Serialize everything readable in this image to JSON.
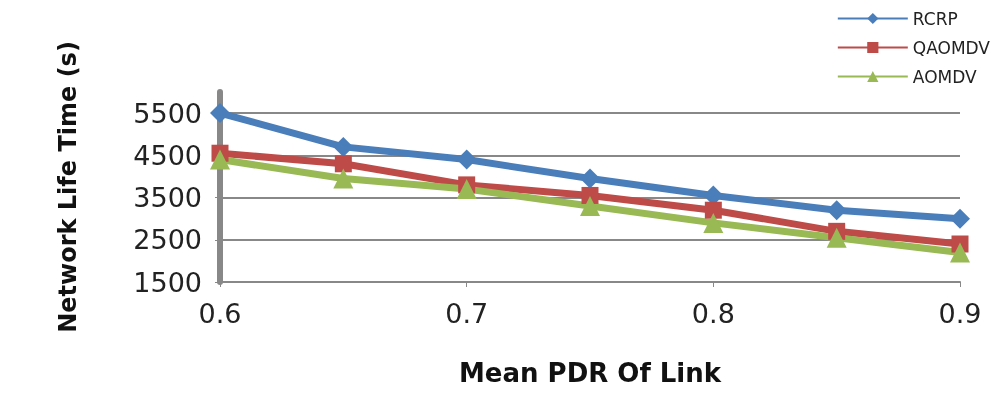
{
  "chart_data": {
    "type": "line",
    "xlabel": "Mean PDR Of Link",
    "ylabel": "Network Life Time (s)",
    "x": [
      0.6,
      0.65,
      0.7,
      0.75,
      0.8,
      0.85,
      0.9
    ],
    "xlim": [
      0.6,
      0.9
    ],
    "xticks": [
      {
        "value": 0.6,
        "label": "0.6"
      },
      {
        "value": 0.7,
        "label": "0.7"
      },
      {
        "value": 0.8,
        "label": "0.8"
      },
      {
        "value": 0.9,
        "label": "0.9"
      }
    ],
    "ylim": [
      1500,
      6000
    ],
    "yticks": [
      1500,
      2500,
      3500,
      4500,
      5500
    ],
    "grid": "y",
    "legend": "top right",
    "series": [
      {
        "name": "RCRP",
        "color": "#4a7ebb",
        "marker": "diamond",
        "values": [
          5500,
          4700,
          4400,
          3950,
          3550,
          3200,
          3000
        ]
      },
      {
        "name": "QAOMDV",
        "color": "#be4b48",
        "marker": "square",
        "values": [
          4550,
          4300,
          3800,
          3550,
          3200,
          2700,
          2400
        ]
      },
      {
        "name": "AOMDV",
        "color": "#98b954",
        "marker": "triangle",
        "values": [
          4400,
          3950,
          3700,
          3300,
          2900,
          2550,
          2200
        ]
      }
    ]
  }
}
